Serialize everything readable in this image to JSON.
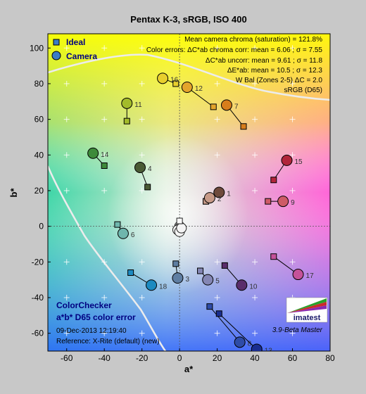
{
  "chart_data": {
    "type": "scatter",
    "title": "Pentax K-3, sRGB, ISO 400",
    "xlabel": "a*",
    "ylabel": "b*",
    "xlim": [
      -70,
      80
    ],
    "ylim": [
      -70,
      108
    ],
    "xticks": [
      -60,
      -40,
      -20,
      0,
      20,
      40,
      60,
      80
    ],
    "yticks": [
      -60,
      -40,
      -20,
      0,
      20,
      40,
      60,
      80,
      100
    ],
    "legend": {
      "position": "top-left",
      "items": [
        {
          "label": "Ideal",
          "marker": "square"
        },
        {
          "label": "Camera",
          "marker": "circle"
        }
      ]
    },
    "stats": [
      "Mean camera chroma (saturation) = 121.8%",
      "Color errors: ΔC*ab chroma corr:  mean = 6.06 ;  σ = 7.55",
      "ΔC*ab uncorr:  mean = 9.61 ;  σ = 11.8",
      "ΔE*ab:  mean = 10.5 ;  σ = 12.3",
      "W Bal (Zones 2-5) ΔC = 2.0",
      "sRGB (D65)"
    ],
    "footer": {
      "title1": "ColorChecker",
      "title2": "a*b* D65 color error",
      "date": "09-Dec-2013 12:19:40",
      "reference": "Reference: X-Rite (default) (new)"
    },
    "version": "3.9-Beta  Master",
    "logo_text": "imatest",
    "patches": [
      {
        "id": "1",
        "ideal": [
          14,
          14
        ],
        "camera": [
          21,
          19
        ],
        "color": "#6e4a3c"
      },
      {
        "id": "2",
        "ideal": [
          14,
          14
        ],
        "camera": [
          16,
          16
        ],
        "color": "#c79a88"
      },
      {
        "id": "3",
        "ideal": [
          -2,
          -21
        ],
        "camera": [
          -1,
          -29
        ],
        "color": "#5f7ea2"
      },
      {
        "id": "4",
        "ideal": [
          -17,
          22
        ],
        "camera": [
          -21,
          33
        ],
        "color": "#4a5a34"
      },
      {
        "id": "5",
        "ideal": [
          11,
          -25
        ],
        "camera": [
          15,
          -30
        ],
        "color": "#8486b4"
      },
      {
        "id": "6",
        "ideal": [
          -33,
          1
        ],
        "camera": [
          -30,
          -4
        ],
        "color": "#6fb6ad"
      },
      {
        "id": "7",
        "ideal": [
          34,
          56
        ],
        "camera": [
          25,
          68
        ],
        "color": "#d77d1c"
      },
      {
        "id": "8",
        "ideal": [
          16,
          -45
        ],
        "camera": [
          32,
          -65
        ],
        "color": "#2e4ca8"
      },
      {
        "id": "9",
        "ideal": [
          47,
          14
        ],
        "camera": [
          55,
          14
        ],
        "color": "#ce5b67"
      },
      {
        "id": "10",
        "ideal": [
          24,
          -22
        ],
        "camera": [
          33,
          -33
        ],
        "color": "#5a2d6b"
      },
      {
        "id": "11",
        "ideal": [
          -28,
          59
        ],
        "camera": [
          -28,
          69
        ],
        "color": "#a3bb2a"
      },
      {
        "id": "12",
        "ideal": [
          18,
          67
        ],
        "camera": [
          4,
          78
        ],
        "color": "#e4a42c"
      },
      {
        "id": "13",
        "ideal": [
          21,
          -49
        ],
        "camera": [
          41,
          -69
        ],
        "color": "#1a2e90"
      },
      {
        "id": "14",
        "ideal": [
          -40,
          34
        ],
        "camera": [
          -46,
          41
        ],
        "color": "#3d8a3a"
      },
      {
        "id": "15",
        "ideal": [
          50,
          26
        ],
        "camera": [
          57,
          37
        ],
        "color": "#b1263a"
      },
      {
        "id": "16",
        "ideal": [
          -2,
          80
        ],
        "camera": [
          -9,
          83
        ],
        "color": "#e8cf2d"
      },
      {
        "id": "17",
        "ideal": [
          50,
          -17
        ],
        "camera": [
          63,
          -27
        ],
        "color": "#c5529a"
      },
      {
        "id": "18",
        "ideal": [
          -26,
          -26
        ],
        "camera": [
          -15,
          -33
        ],
        "color": "#1d8ac0"
      }
    ],
    "neutral_cluster": [
      [
        0,
        0
      ],
      [
        0,
        -1
      ],
      [
        -1,
        -2
      ],
      [
        0,
        -3
      ],
      [
        1,
        -1
      ]
    ]
  }
}
